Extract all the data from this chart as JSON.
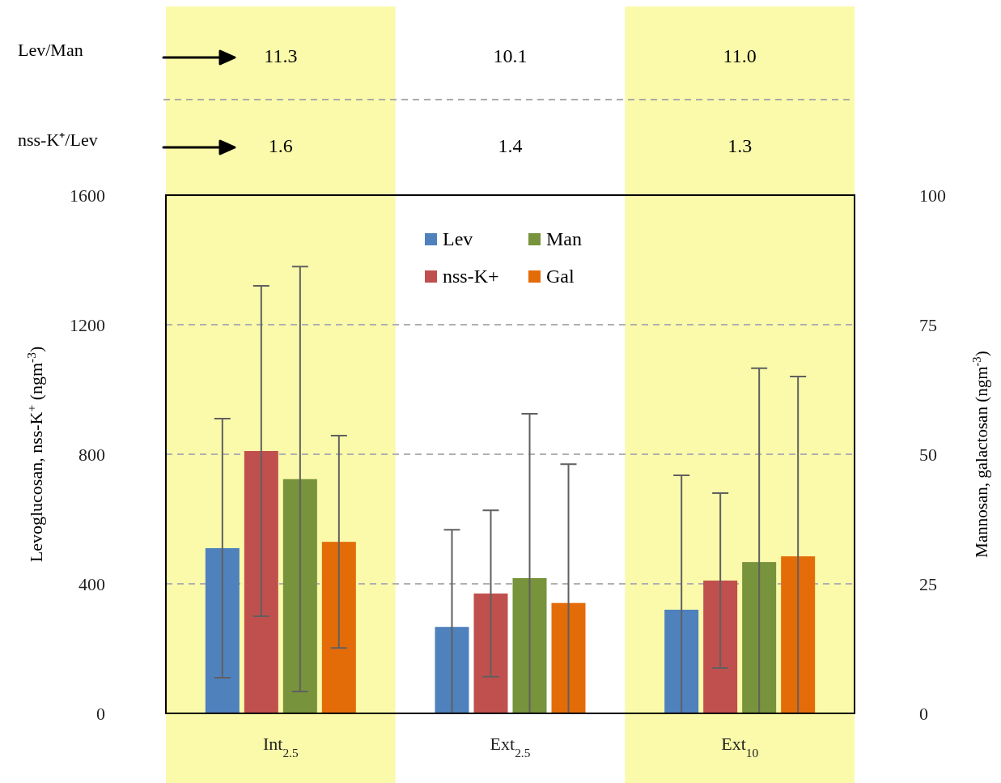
{
  "chart_data": {
    "type": "bar",
    "categories": [
      "Int$_{2.5}$",
      "Ext$_{2.5}$",
      "Ext$_{10}$"
    ],
    "ylabel": "Levoglucosan, nss-K$^{+}$ (ngm$^{-3}$)",
    "y2label": "Mannosan, galactosan (ngm$^{-3}$)",
    "ylim": [
      0,
      1600
    ],
    "yticks": [
      0,
      400,
      800,
      1200,
      1600
    ],
    "y2lim": [
      0,
      100
    ],
    "y2ticks": [
      0,
      25,
      50,
      75,
      100
    ],
    "grid": "y",
    "legend": "top",
    "bands": [
      {
        "axis": "x",
        "from": "Int$_{2.5}$",
        "to": "Int$_{2.5}$",
        "color": "#fafaaa"
      },
      {
        "axis": "x",
        "from": "Ext$_{10}$",
        "to": "Ext$_{10}$",
        "color": "#fafaaa"
      }
    ],
    "series": [
      {
        "name": "Lev",
        "color": "#4f81bd",
        "values": [
          510,
          267,
          320
        ],
        "errors": [
          400,
          [
            0,
            567
          ],
          [
            0,
            735
          ]
        ]
      },
      {
        "name": "nss-K+",
        "color": "#c0504d",
        "values": [
          810,
          370,
          410
        ],
        "errors": [
          510,
          257,
          270
        ]
      },
      {
        "name": "Man",
        "color": "#77933c",
        "axis": "y2",
        "values": [
          45.2,
          26.1,
          29.2
        ],
        "errors": [
          41,
          [
            0,
            57.8
          ],
          [
            0,
            66.6
          ]
        ]
      },
      {
        "name": "Gal",
        "color": "#e36c09",
        "axis": "y2",
        "values": [
          33.1,
          21.3,
          30.3
        ],
        "errors": [
          20.5,
          [
            0,
            48.1
          ],
          [
            0,
            65
          ]
        ]
      }
    ],
    "annotations": [
      "Lev/Man",
      "11.3",
      "10.1",
      "11.0",
      "nss-K⁺/Lev",
      "1.6",
      "1.4",
      "1.3"
    ]
  }
}
